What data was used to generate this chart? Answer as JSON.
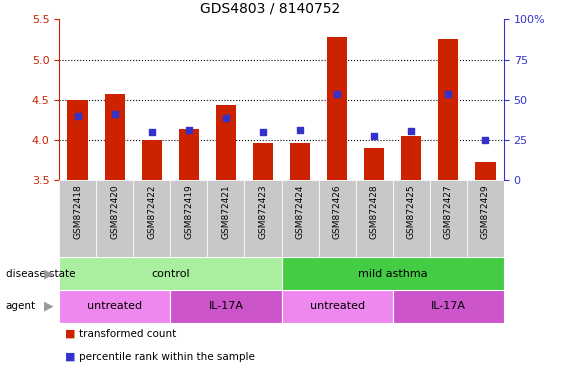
{
  "title": "GDS4803 / 8140752",
  "samples": [
    "GSM872418",
    "GSM872420",
    "GSM872422",
    "GSM872419",
    "GSM872421",
    "GSM872423",
    "GSM872424",
    "GSM872426",
    "GSM872428",
    "GSM872425",
    "GSM872427",
    "GSM872429"
  ],
  "bar_values": [
    4.5,
    4.57,
    4.0,
    4.14,
    4.44,
    3.97,
    3.96,
    5.28,
    3.9,
    4.05,
    5.25,
    3.73
  ],
  "percentile_values": [
    4.3,
    4.32,
    4.1,
    4.13,
    4.27,
    4.1,
    4.13,
    4.57,
    4.05,
    4.11,
    4.57,
    4.0
  ],
  "ylim": [
    3.5,
    5.5
  ],
  "yticks": [
    3.5,
    4.0,
    4.5,
    5.0,
    5.5
  ],
  "y2lim": [
    0,
    100
  ],
  "y2ticks": [
    0,
    25,
    50,
    75,
    100
  ],
  "bar_color": "#CC2200",
  "dot_color": "#3333CC",
  "bar_width": 0.55,
  "xtick_bg_color": "#C8C8C8",
  "disease_state_groups": [
    {
      "label": "control",
      "start": 0,
      "end": 6,
      "color": "#AAEEA0"
    },
    {
      "label": "mild asthma",
      "start": 6,
      "end": 12,
      "color": "#44CC44"
    }
  ],
  "agent_groups": [
    {
      "label": "untreated",
      "start": 0,
      "end": 3,
      "color": "#EE88EE"
    },
    {
      "label": "IL-17A",
      "start": 3,
      "end": 6,
      "color": "#CC55CC"
    },
    {
      "label": "untreated",
      "start": 6,
      "end": 9,
      "color": "#EE88EE"
    },
    {
      "label": "IL-17A",
      "start": 9,
      "end": 12,
      "color": "#CC55CC"
    }
  ],
  "legend_items": [
    {
      "label": "transformed count",
      "color": "#CC2200"
    },
    {
      "label": "percentile rank within the sample",
      "color": "#3333CC"
    }
  ],
  "tick_color_left": "#CC2200",
  "tick_color_right": "#3333CC",
  "title_fontsize": 10,
  "label_fontsize": 8,
  "tick_fontsize": 8
}
